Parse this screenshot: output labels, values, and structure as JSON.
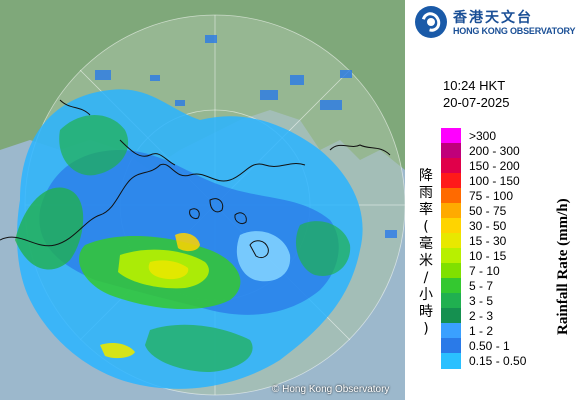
{
  "header": {
    "org_name_zh": "香港天文台",
    "org_name_en": "HONG KONG OBSERVATORY"
  },
  "timestamp": {
    "time": "10:24 HKT",
    "date": "20-07-2025"
  },
  "legend": {
    "title_en": "Rainfall Rate (mm/h)",
    "title_zh": "降雨率(毫米/小時)",
    "items": [
      {
        "label": ">300",
        "color": "#ff00ff"
      },
      {
        "label": "200 - 300",
        "color": "#c0007a"
      },
      {
        "label": "150 - 200",
        "color": "#e0004a"
      },
      {
        "label": "100 - 150",
        "color": "#ff1a1a"
      },
      {
        "label": "75 - 100",
        "color": "#ff6a00"
      },
      {
        "label": "50 - 75",
        "color": "#ffaa00"
      },
      {
        "label": "30 - 50",
        "color": "#ffd400"
      },
      {
        "label": "15 - 30",
        "color": "#e8e800"
      },
      {
        "label": "10 - 15",
        "color": "#b8f000"
      },
      {
        "label": "7 - 10",
        "color": "#80e000"
      },
      {
        "label": "5 - 7",
        "color": "#34c830"
      },
      {
        "label": "3 - 5",
        "color": "#20b050"
      },
      {
        "label": "2 - 3",
        "color": "#159050"
      },
      {
        "label": "1 - 2",
        "color": "#3aa0ff"
      },
      {
        "label": "0.50 - 1",
        "color": "#2a7ae8"
      },
      {
        "label": "0.15 - 0.50",
        "color": "#2ac0ff"
      }
    ]
  },
  "map": {
    "copyright": "© Hong Kong Observatory"
  }
}
